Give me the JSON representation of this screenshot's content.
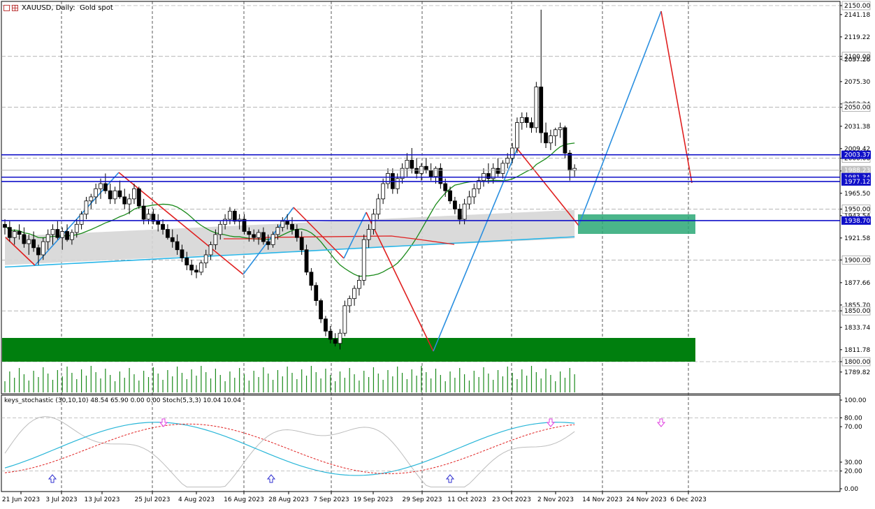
{
  "header": {
    "symbol_label": "XAUUSD, Daily:  Gold spot"
  },
  "main_axis": {
    "ticks": [
      "2150.00",
      "2141.18",
      "2119.22",
      "2100.00",
      "2097.26",
      "2075.30",
      "2053.34",
      "2050.00",
      "2031.38",
      "2009.42",
      "2000.00",
      "1987.46",
      "1965.50",
      "1950.00",
      "1943.54",
      "1921.58",
      "1900.00",
      "1877.66",
      "1855.70",
      "1850.00",
      "1833.74",
      "1811.78",
      "1800.00",
      "1789.82"
    ],
    "highlighted": [
      "2150.00",
      "2100.00",
      "2050.00",
      "2000.00",
      "1950.00",
      "1900.00",
      "1850.00",
      "1800.00"
    ],
    "price_tags": [
      {
        "label": "2003.37",
        "color": "#1010c8"
      },
      {
        "label": "1988.23",
        "color": "#c0c0c0"
      },
      {
        "label": "1981.34",
        "color": "#1010c8"
      },
      {
        "label": "1977.12",
        "color": "#1010c8"
      },
      {
        "label": "1938.70",
        "color": "#1010c8"
      }
    ]
  },
  "date_axis": [
    "21 Jun 2023",
    "3 Jul 2023",
    "13 Jul 2023",
    "25 Jul 2023",
    "4 Aug 2023",
    "16 Aug 2023",
    "28 Aug 2023",
    "7 Sep 2023",
    "19 Sep 2023",
    "29 Sep 2023",
    "11 Oct 2023",
    "23 Oct 2023",
    "2 Nov 2023",
    "14 Nov 2023",
    "24 Nov 2023",
    "6 Dec 2023"
  ],
  "indicator": {
    "label": "keys_stochastic (30,10,10) 48.54 65.90 0.00 0.00 Stoch(5,3,3) 10.04 10.04",
    "ticks": [
      "100.00",
      "80.00",
      "70.00",
      "30.00",
      "20.00",
      "0.00"
    ]
  },
  "chart_data": {
    "type": "candlestick",
    "symbol": "XAUUSD",
    "timeframe": "Daily",
    "x_range": [
      "21 Jun 2023",
      "8 Dec 2023"
    ],
    "ylim": [
      1785,
      2150
    ],
    "grid": true,
    "candles": [
      {
        "o": 1935,
        "h": 1940,
        "l": 1925,
        "c": 1932
      },
      {
        "o": 1932,
        "h": 1938,
        "l": 1918,
        "c": 1922
      },
      {
        "o": 1922,
        "h": 1930,
        "l": 1915,
        "c": 1928
      },
      {
        "o": 1928,
        "h": 1935,
        "l": 1920,
        "c": 1925
      },
      {
        "o": 1925,
        "h": 1932,
        "l": 1912,
        "c": 1916
      },
      {
        "o": 1916,
        "h": 1925,
        "l": 1905,
        "c": 1920
      },
      {
        "o": 1920,
        "h": 1928,
        "l": 1908,
        "c": 1912
      },
      {
        "o": 1912,
        "h": 1915,
        "l": 1895,
        "c": 1905
      },
      {
        "o": 1905,
        "h": 1922,
        "l": 1900,
        "c": 1918
      },
      {
        "o": 1918,
        "h": 1930,
        "l": 1910,
        "c": 1925
      },
      {
        "o": 1925,
        "h": 1935,
        "l": 1915,
        "c": 1930
      },
      {
        "o": 1930,
        "h": 1938,
        "l": 1920,
        "c": 1922
      },
      {
        "o": 1922,
        "h": 1932,
        "l": 1910,
        "c": 1928
      },
      {
        "o": 1928,
        "h": 1935,
        "l": 1918,
        "c": 1920
      },
      {
        "o": 1920,
        "h": 1930,
        "l": 1915,
        "c": 1927
      },
      {
        "o": 1927,
        "h": 1940,
        "l": 1922,
        "c": 1935
      },
      {
        "o": 1935,
        "h": 1948,
        "l": 1930,
        "c": 1945
      },
      {
        "o": 1945,
        "h": 1962,
        "l": 1940,
        "c": 1958
      },
      {
        "o": 1958,
        "h": 1965,
        "l": 1950,
        "c": 1962
      },
      {
        "o": 1962,
        "h": 1975,
        "l": 1955,
        "c": 1970
      },
      {
        "o": 1970,
        "h": 1980,
        "l": 1960,
        "c": 1975
      },
      {
        "o": 1975,
        "h": 1985,
        "l": 1965,
        "c": 1968
      },
      {
        "o": 1968,
        "h": 1975,
        "l": 1955,
        "c": 1960
      },
      {
        "o": 1960,
        "h": 1972,
        "l": 1955,
        "c": 1968
      },
      {
        "o": 1968,
        "h": 1978,
        "l": 1960,
        "c": 1962
      },
      {
        "o": 1962,
        "h": 1970,
        "l": 1950,
        "c": 1955
      },
      {
        "o": 1955,
        "h": 1965,
        "l": 1945,
        "c": 1960
      },
      {
        "o": 1960,
        "h": 1975,
        "l": 1955,
        "c": 1970
      },
      {
        "o": 1970,
        "h": 1972,
        "l": 1950,
        "c": 1953
      },
      {
        "o": 1953,
        "h": 1960,
        "l": 1935,
        "c": 1940
      },
      {
        "o": 1940,
        "h": 1950,
        "l": 1935,
        "c": 1945
      },
      {
        "o": 1945,
        "h": 1950,
        "l": 1935,
        "c": 1938
      },
      {
        "o": 1938,
        "h": 1945,
        "l": 1928,
        "c": 1935
      },
      {
        "o": 1935,
        "h": 1940,
        "l": 1925,
        "c": 1930
      },
      {
        "o": 1930,
        "h": 1935,
        "l": 1920,
        "c": 1922
      },
      {
        "o": 1922,
        "h": 1930,
        "l": 1912,
        "c": 1918
      },
      {
        "o": 1918,
        "h": 1925,
        "l": 1905,
        "c": 1910
      },
      {
        "o": 1910,
        "h": 1915,
        "l": 1898,
        "c": 1902
      },
      {
        "o": 1902,
        "h": 1908,
        "l": 1890,
        "c": 1895
      },
      {
        "o": 1895,
        "h": 1900,
        "l": 1885,
        "c": 1890
      },
      {
        "o": 1890,
        "h": 1895,
        "l": 1882,
        "c": 1888
      },
      {
        "o": 1888,
        "h": 1900,
        "l": 1885,
        "c": 1897
      },
      {
        "o": 1897,
        "h": 1910,
        "l": 1892,
        "c": 1905
      },
      {
        "o": 1905,
        "h": 1918,
        "l": 1900,
        "c": 1915
      },
      {
        "o": 1915,
        "h": 1930,
        "l": 1910,
        "c": 1925
      },
      {
        "o": 1925,
        "h": 1938,
        "l": 1920,
        "c": 1935
      },
      {
        "o": 1935,
        "h": 1945,
        "l": 1930,
        "c": 1940
      },
      {
        "o": 1940,
        "h": 1952,
        "l": 1935,
        "c": 1948
      },
      {
        "o": 1948,
        "h": 1950,
        "l": 1935,
        "c": 1938
      },
      {
        "o": 1938,
        "h": 1945,
        "l": 1930,
        "c": 1940
      },
      {
        "o": 1940,
        "h": 1945,
        "l": 1925,
        "c": 1928
      },
      {
        "o": 1928,
        "h": 1932,
        "l": 1918,
        "c": 1925
      },
      {
        "o": 1925,
        "h": 1930,
        "l": 1918,
        "c": 1922
      },
      {
        "o": 1922,
        "h": 1930,
        "l": 1915,
        "c": 1927
      },
      {
        "o": 1927,
        "h": 1932,
        "l": 1915,
        "c": 1918
      },
      {
        "o": 1918,
        "h": 1925,
        "l": 1910,
        "c": 1915
      },
      {
        "o": 1915,
        "h": 1928,
        "l": 1912,
        "c": 1925
      },
      {
        "o": 1925,
        "h": 1935,
        "l": 1920,
        "c": 1932
      },
      {
        "o": 1932,
        "h": 1942,
        "l": 1928,
        "c": 1938
      },
      {
        "o": 1938,
        "h": 1945,
        "l": 1930,
        "c": 1935
      },
      {
        "o": 1935,
        "h": 1942,
        "l": 1925,
        "c": 1930
      },
      {
        "o": 1930,
        "h": 1935,
        "l": 1918,
        "c": 1922
      },
      {
        "o": 1922,
        "h": 1928,
        "l": 1905,
        "c": 1910
      },
      {
        "o": 1910,
        "h": 1915,
        "l": 1885,
        "c": 1888
      },
      {
        "o": 1888,
        "h": 1892,
        "l": 1870,
        "c": 1875
      },
      {
        "o": 1875,
        "h": 1878,
        "l": 1855,
        "c": 1860
      },
      {
        "o": 1860,
        "h": 1862,
        "l": 1838,
        "c": 1842
      },
      {
        "o": 1842,
        "h": 1845,
        "l": 1825,
        "c": 1830
      },
      {
        "o": 1830,
        "h": 1835,
        "l": 1818,
        "c": 1822
      },
      {
        "o": 1822,
        "h": 1828,
        "l": 1815,
        "c": 1818
      },
      {
        "o": 1818,
        "h": 1832,
        "l": 1812,
        "c": 1828
      },
      {
        "o": 1828,
        "h": 1860,
        "l": 1825,
        "c": 1855
      },
      {
        "o": 1855,
        "h": 1865,
        "l": 1848,
        "c": 1862
      },
      {
        "o": 1862,
        "h": 1875,
        "l": 1855,
        "c": 1872
      },
      {
        "o": 1872,
        "h": 1885,
        "l": 1865,
        "c": 1880
      },
      {
        "o": 1880,
        "h": 1925,
        "l": 1875,
        "c": 1920
      },
      {
        "o": 1920,
        "h": 1935,
        "l": 1912,
        "c": 1930
      },
      {
        "o": 1930,
        "h": 1950,
        "l": 1925,
        "c": 1945
      },
      {
        "o": 1945,
        "h": 1965,
        "l": 1940,
        "c": 1960
      },
      {
        "o": 1960,
        "h": 1980,
        "l": 1955,
        "c": 1975
      },
      {
        "o": 1975,
        "h": 1990,
        "l": 1970,
        "c": 1985
      },
      {
        "o": 1985,
        "h": 1990,
        "l": 1965,
        "c": 1970
      },
      {
        "o": 1970,
        "h": 1985,
        "l": 1965,
        "c": 1980
      },
      {
        "o": 1980,
        "h": 1995,
        "l": 1975,
        "c": 1990
      },
      {
        "o": 1990,
        "h": 2005,
        "l": 1982,
        "c": 1998
      },
      {
        "o": 1998,
        "h": 2010,
        "l": 1985,
        "c": 1990
      },
      {
        "o": 1990,
        "h": 2000,
        "l": 1980,
        "c": 1985
      },
      {
        "o": 1985,
        "h": 1995,
        "l": 1978,
        "c": 1992
      },
      {
        "o": 1992,
        "h": 2000,
        "l": 1985,
        "c": 1988
      },
      {
        "o": 1988,
        "h": 1995,
        "l": 1978,
        "c": 1982
      },
      {
        "o": 1982,
        "h": 1992,
        "l": 1975,
        "c": 1990
      },
      {
        "o": 1990,
        "h": 1995,
        "l": 1970,
        "c": 1975
      },
      {
        "o": 1975,
        "h": 1980,
        "l": 1962,
        "c": 1968
      },
      {
        "o": 1968,
        "h": 1972,
        "l": 1955,
        "c": 1958
      },
      {
        "o": 1958,
        "h": 1962,
        "l": 1945,
        "c": 1950
      },
      {
        "o": 1950,
        "h": 1955,
        "l": 1935,
        "c": 1940
      },
      {
        "o": 1940,
        "h": 1960,
        "l": 1935,
        "c": 1955
      },
      {
        "o": 1955,
        "h": 1968,
        "l": 1950,
        "c": 1962
      },
      {
        "o": 1962,
        "h": 1975,
        "l": 1955,
        "c": 1970
      },
      {
        "o": 1970,
        "h": 1982,
        "l": 1965,
        "c": 1978
      },
      {
        "o": 1978,
        "h": 1990,
        "l": 1972,
        "c": 1985
      },
      {
        "o": 1985,
        "h": 1995,
        "l": 1975,
        "c": 1980
      },
      {
        "o": 1980,
        "h": 1995,
        "l": 1975,
        "c": 1990
      },
      {
        "o": 1990,
        "h": 2000,
        "l": 1982,
        "c": 1985
      },
      {
        "o": 1985,
        "h": 1998,
        "l": 1980,
        "c": 1995
      },
      {
        "o": 1995,
        "h": 2005,
        "l": 1990,
        "c": 2000
      },
      {
        "o": 2000,
        "h": 2015,
        "l": 1995,
        "c": 2010
      },
      {
        "o": 2010,
        "h": 2040,
        "l": 2005,
        "c": 2035
      },
      {
        "o": 2035,
        "h": 2045,
        "l": 2028,
        "c": 2040
      },
      {
        "o": 2040,
        "h": 2045,
        "l": 2030,
        "c": 2035
      },
      {
        "o": 2035,
        "h": 2040,
        "l": 2025,
        "c": 2030
      },
      {
        "o": 2030,
        "h": 2075,
        "l": 2025,
        "c": 2070
      },
      {
        "o": 2070,
        "h": 2146,
        "l": 2015,
        "c": 2025
      },
      {
        "o": 2025,
        "h": 2035,
        "l": 2010,
        "c": 2015
      },
      {
        "o": 2015,
        "h": 2028,
        "l": 2008,
        "c": 2022
      },
      {
        "o": 2022,
        "h": 2030,
        "l": 2012,
        "c": 2028
      },
      {
        "o": 2028,
        "h": 2035,
        "l": 2020,
        "c": 2030
      },
      {
        "o": 2030,
        "h": 2032,
        "l": 2000,
        "c": 2005
      },
      {
        "o": 2005,
        "h": 2008,
        "l": 1978,
        "c": 1988
      },
      {
        "o": 1988,
        "h": 1994,
        "l": 1982,
        "c": 1990
      }
    ]
  }
}
